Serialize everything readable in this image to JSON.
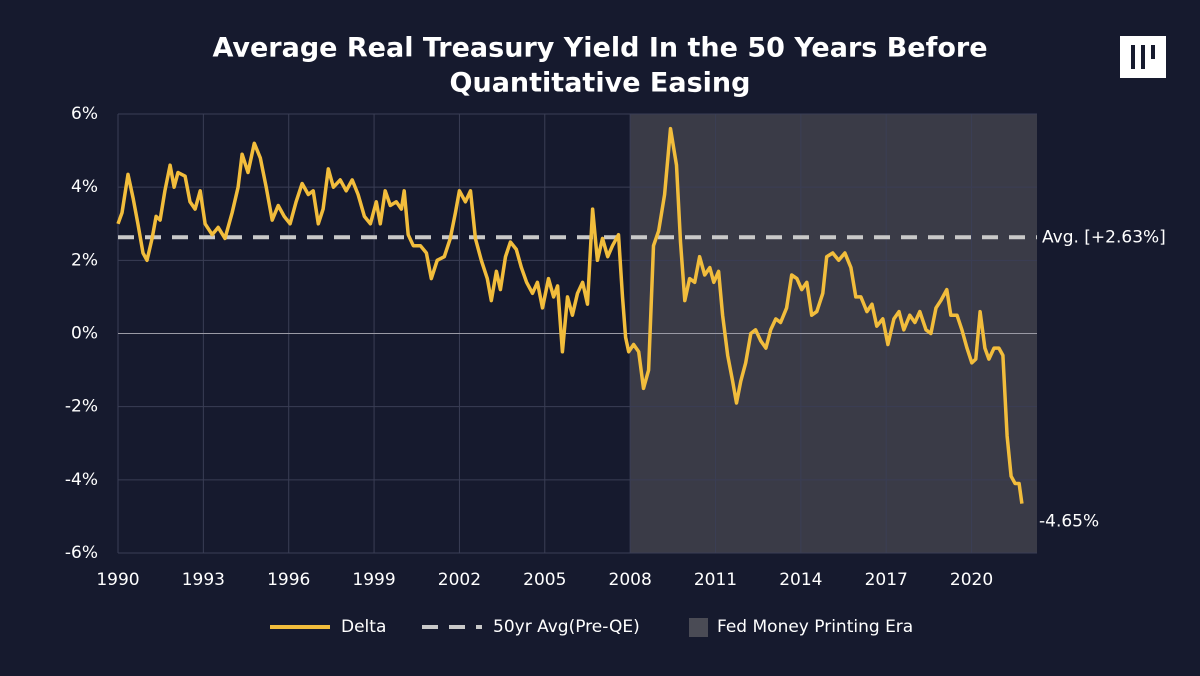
{
  "chart_data": {
    "type": "line",
    "title": [
      "Average Real Treasury Yield In the 50 Years Before",
      "Quantitative Easing"
    ],
    "xlim": [
      1990,
      2022.3
    ],
    "xticks": [
      1990,
      1993,
      1996,
      1999,
      2002,
      2005,
      2008,
      2011,
      2014,
      2017,
      2020
    ],
    "ylim": [
      -6,
      6
    ],
    "yticks": [
      {
        "value": 6,
        "label": "6%"
      },
      {
        "value": 4,
        "label": "4%"
      },
      {
        "value": 2,
        "label": "2%"
      },
      {
        "value": 0,
        "label": "0%"
      },
      {
        "value": -2,
        "label": "-2%"
      },
      {
        "value": -4,
        "label": "-4%"
      },
      {
        "value": -6,
        "label": "-6%"
      }
    ],
    "grid": true,
    "shade": {
      "name": "Fed Money Printing Era",
      "color": "#3a3b47",
      "x0": 2008,
      "x1": 2022.3
    },
    "reference_line": {
      "name": "50yr Avg(Pre-QE)",
      "value": 2.63,
      "label": "Avg. [+2.63%]",
      "color": "#c9c9c9"
    },
    "series": [
      {
        "name": "Delta",
        "color": "#f2bd3c",
        "end_label": "-4.65%",
        "x": [
          1990.0,
          1990.14,
          1990.35,
          1990.53,
          1990.7,
          1990.88,
          1991.02,
          1991.2,
          1991.34,
          1991.48,
          1991.65,
          1991.83,
          1991.97,
          1992.11,
          1992.36,
          1992.53,
          1992.71,
          1992.89,
          1993.06,
          1993.31,
          1993.52,
          1993.76,
          1994.01,
          1994.22,
          1994.36,
          1994.57,
          1994.79,
          1995.0,
          1995.21,
          1995.42,
          1995.63,
          1995.84,
          1996.05,
          1996.26,
          1996.47,
          1996.69,
          1996.86,
          1997.04,
          1997.21,
          1997.39,
          1997.57,
          1997.81,
          1998.02,
          1998.23,
          1998.44,
          1998.66,
          1998.87,
          1999.08,
          1999.22,
          1999.39,
          1999.57,
          1999.78,
          1999.96,
          2000.06,
          2000.2,
          2000.38,
          2000.63,
          2000.84,
          2001.01,
          2001.22,
          2001.47,
          2001.68,
          2001.86,
          2002.0,
          2002.21,
          2002.39,
          2002.56,
          2002.77,
          2002.98,
          2003.12,
          2003.3,
          2003.44,
          2003.62,
          2003.79,
          2004.0,
          2004.18,
          2004.36,
          2004.57,
          2004.74,
          2004.92,
          2005.13,
          2005.31,
          2005.45,
          2005.62,
          2005.8,
          2005.97,
          2006.15,
          2006.33,
          2006.5,
          2006.68,
          2006.85,
          2007.03,
          2007.21,
          2007.38,
          2007.59,
          2007.73,
          2007.84,
          2007.95,
          2008.12,
          2008.3,
          2008.47,
          2008.65,
          2008.82,
          2009.0,
          2009.21,
          2009.42,
          2009.63,
          2009.77,
          2009.92,
          2010.09,
          2010.27,
          2010.44,
          2010.62,
          2010.8,
          2010.94,
          2011.11,
          2011.25,
          2011.43,
          2011.6,
          2011.74,
          2011.89,
          2012.06,
          2012.24,
          2012.41,
          2012.59,
          2012.77,
          2012.94,
          2013.12,
          2013.29,
          2013.5,
          2013.68,
          2013.86,
          2014.03,
          2014.21,
          2014.38,
          2014.56,
          2014.77,
          2014.91,
          2015.12,
          2015.33,
          2015.55,
          2015.76,
          2015.93,
          2016.11,
          2016.32,
          2016.5,
          2016.67,
          2016.88,
          2017.06,
          2017.27,
          2017.45,
          2017.62,
          2017.83,
          2018.01,
          2018.18,
          2018.4,
          2018.57,
          2018.75,
          2018.92,
          2019.13,
          2019.27,
          2019.49,
          2019.66,
          2019.84,
          2020.01,
          2020.15,
          2020.3,
          2020.47,
          2020.61,
          2020.79,
          2020.96,
          2021.1,
          2021.25,
          2021.39,
          2021.53,
          2021.67,
          2021.77
        ],
        "values": [
          3.0,
          3.3,
          4.35,
          3.7,
          3.0,
          2.2,
          2.0,
          2.6,
          3.2,
          3.1,
          3.9,
          4.6,
          4.0,
          4.4,
          4.3,
          3.6,
          3.4,
          3.9,
          3.0,
          2.7,
          2.9,
          2.6,
          3.3,
          4.0,
          4.9,
          4.4,
          5.2,
          4.8,
          4.0,
          3.1,
          3.5,
          3.2,
          3.0,
          3.6,
          4.1,
          3.8,
          3.9,
          3.0,
          3.4,
          4.5,
          4.0,
          4.2,
          3.9,
          4.2,
          3.8,
          3.2,
          3.0,
          3.6,
          3.0,
          3.9,
          3.5,
          3.6,
          3.4,
          3.9,
          2.7,
          2.4,
          2.4,
          2.2,
          1.5,
          2.0,
          2.1,
          2.6,
          3.3,
          3.9,
          3.6,
          3.9,
          2.6,
          2.0,
          1.5,
          0.9,
          1.7,
          1.2,
          2.1,
          2.5,
          2.3,
          1.8,
          1.4,
          1.1,
          1.4,
          0.7,
          1.5,
          1.0,
          1.3,
          -0.5,
          1.0,
          0.5,
          1.1,
          1.4,
          0.8,
          3.4,
          2.0,
          2.6,
          2.1,
          2.4,
          2.7,
          1.0,
          -0.1,
          -0.5,
          -0.3,
          -0.5,
          -1.5,
          -1.0,
          2.4,
          2.8,
          3.8,
          5.6,
          4.6,
          2.5,
          0.9,
          1.5,
          1.4,
          2.1,
          1.6,
          1.8,
          1.4,
          1.7,
          0.5,
          -0.6,
          -1.3,
          -1.9,
          -1.3,
          -0.8,
          0.0,
          0.1,
          -0.2,
          -0.4,
          0.1,
          0.4,
          0.3,
          0.7,
          1.6,
          1.5,
          1.2,
          1.4,
          0.5,
          0.6,
          1.1,
          2.1,
          2.2,
          2.0,
          2.2,
          1.8,
          1.0,
          1.0,
          0.6,
          0.8,
          0.2,
          0.4,
          -0.3,
          0.4,
          0.6,
          0.1,
          0.5,
          0.3,
          0.6,
          0.1,
          0.0,
          0.7,
          0.9,
          1.2,
          0.5,
          0.5,
          0.1,
          -0.4,
          -0.8,
          -0.7,
          0.6,
          -0.4,
          -0.7,
          -0.4,
          -0.4,
          -0.6,
          -2.8,
          -3.9,
          -4.1,
          -4.1,
          -4.65
        ]
      }
    ]
  }
}
